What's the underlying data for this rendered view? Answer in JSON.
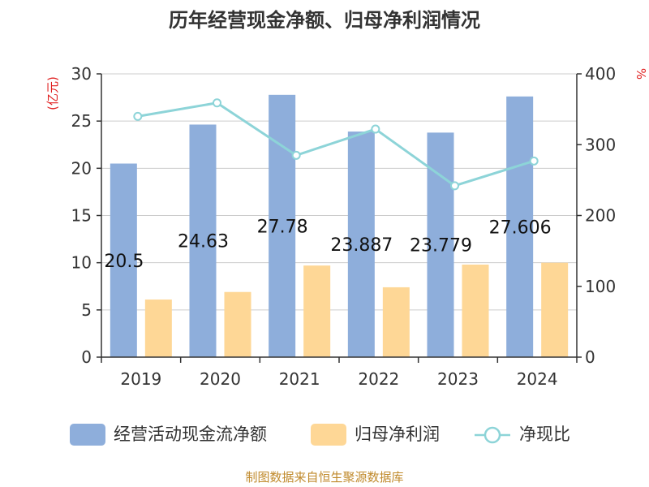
{
  "chart_data": {
    "type": "bar",
    "title": "历年经营现金净额、归母净利润情况",
    "categories": [
      "2019",
      "2020",
      "2021",
      "2022",
      "2023",
      "2024"
    ],
    "series": [
      {
        "name": "经营活动现金流净额",
        "axis": "left",
        "kind": "bar",
        "values": [
          20.5,
          24.63,
          27.78,
          23.887,
          23.779,
          27.606
        ],
        "labels": [
          "20.5",
          "24.63",
          "27.78",
          "23.887",
          "23.779",
          "27.606"
        ]
      },
      {
        "name": "归母净利润",
        "axis": "left",
        "kind": "bar",
        "values": [
          6.1,
          6.9,
          9.7,
          7.4,
          9.8,
          10.0
        ]
      },
      {
        "name": "净现比",
        "axis": "right",
        "kind": "line",
        "values": [
          340,
          359,
          285,
          322,
          242,
          277
        ]
      }
    ],
    "ylabel": "(亿元)",
    "y2label": "%",
    "ylim": [
      0,
      30
    ],
    "y2lim": [
      0,
      400
    ],
    "yticks": [
      "0",
      "5",
      "10",
      "15",
      "20",
      "25",
      "30"
    ],
    "y2ticks": [
      "0",
      "100",
      "200",
      "300",
      "400"
    ],
    "legend": "bottom",
    "grid": true,
    "source": "制图数据来自恒生聚源数据库",
    "colors": {
      "bar1": "#8eaedb",
      "bar2": "#fed796",
      "line": "#8dd4d8",
      "unit": "#e02020",
      "source": "#c08a2c",
      "axis": "#333333",
      "grid": "#cccccc"
    }
  }
}
